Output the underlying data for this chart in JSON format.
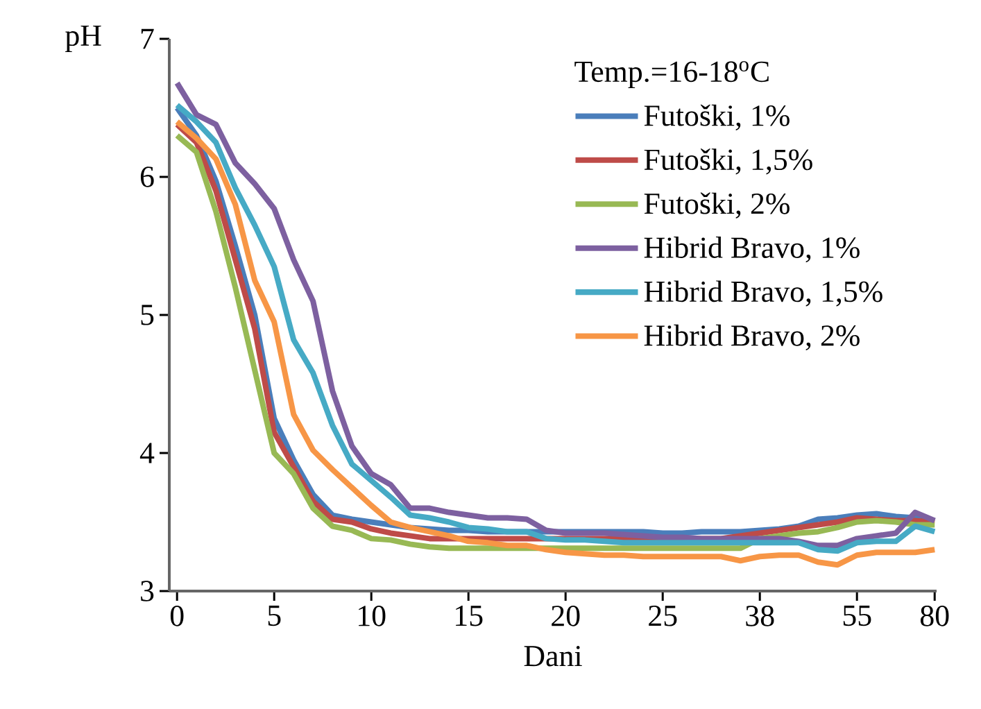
{
  "chart_data": {
    "type": "line",
    "xlabel": "Dani",
    "ylabel": "pH",
    "legend_title": "Temp.=16-18$^{o}$C",
    "categories": [
      "0",
      null,
      null,
      null,
      null,
      "5",
      null,
      null,
      null,
      null,
      "10",
      null,
      null,
      null,
      null,
      "15",
      null,
      null,
      null,
      null,
      "20",
      null,
      null,
      null,
      null,
      "25",
      null,
      null,
      null,
      null,
      "38",
      null,
      null,
      null,
      null,
      "55",
      null,
      null,
      null,
      "80"
    ],
    "ylim": [
      3,
      7
    ],
    "yticks": [
      3,
      4,
      5,
      6,
      7
    ],
    "grid": false,
    "legend": "top right",
    "marker": "none",
    "line_style": "solid",
    "series": [
      {
        "name": "Futoški, 1%",
        "color": "#4a7ebb",
        "values": [
          6.5,
          6.3,
          5.97,
          5.5,
          5.0,
          4.25,
          3.95,
          3.7,
          3.55,
          3.52,
          3.5,
          3.48,
          3.46,
          3.45,
          3.44,
          3.44,
          3.43,
          3.43,
          3.43,
          3.43,
          3.43,
          3.43,
          3.43,
          3.43,
          3.43,
          3.42,
          3.42,
          3.43,
          3.43,
          3.43,
          3.44,
          3.45,
          3.47,
          3.52,
          3.53,
          3.55,
          3.56,
          3.54,
          3.53,
          3.51
        ]
      },
      {
        "name": "Futoški, 1,5%",
        "color": "#be4b48",
        "values": [
          6.38,
          6.25,
          5.9,
          5.4,
          4.9,
          4.15,
          3.9,
          3.65,
          3.52,
          3.5,
          3.45,
          3.42,
          3.4,
          3.38,
          3.38,
          3.38,
          3.38,
          3.38,
          3.38,
          3.38,
          3.38,
          3.38,
          3.38,
          3.38,
          3.38,
          3.38,
          3.38,
          3.38,
          3.38,
          3.4,
          3.42,
          3.44,
          3.46,
          3.48,
          3.5,
          3.53,
          3.52,
          3.51,
          3.51,
          3.5
        ]
      },
      {
        "name": "Futoški, 2%",
        "color": "#98b954",
        "values": [
          6.3,
          6.18,
          5.75,
          5.2,
          4.6,
          4.0,
          3.85,
          3.6,
          3.47,
          3.44,
          3.38,
          3.37,
          3.34,
          3.32,
          3.31,
          3.31,
          3.31,
          3.31,
          3.31,
          3.31,
          3.31,
          3.31,
          3.31,
          3.31,
          3.31,
          3.31,
          3.31,
          3.31,
          3.31,
          3.31,
          3.38,
          3.4,
          3.42,
          3.43,
          3.46,
          3.5,
          3.51,
          3.5,
          3.48,
          3.48
        ]
      },
      {
        "name": "Hibrid Bravo, 1%",
        "color": "#7d60a0",
        "values": [
          6.68,
          6.45,
          6.38,
          6.1,
          5.95,
          5.77,
          5.4,
          5.1,
          4.45,
          4.05,
          3.85,
          3.77,
          3.6,
          3.6,
          3.57,
          3.55,
          3.53,
          3.53,
          3.52,
          3.44,
          3.42,
          3.42,
          3.42,
          3.41,
          3.4,
          3.39,
          3.39,
          3.38,
          3.38,
          3.38,
          3.38,
          3.38,
          3.36,
          3.33,
          3.33,
          3.38,
          3.4,
          3.42,
          3.57,
          3.51
        ]
      },
      {
        "name": "Hibrid Bravo, 1,5%",
        "color": "#46aac5",
        "values": [
          6.52,
          6.4,
          6.25,
          5.92,
          5.65,
          5.35,
          4.82,
          4.58,
          4.2,
          3.92,
          3.8,
          3.68,
          3.55,
          3.53,
          3.5,
          3.46,
          3.45,
          3.43,
          3.43,
          3.38,
          3.37,
          3.37,
          3.36,
          3.35,
          3.35,
          3.35,
          3.35,
          3.35,
          3.35,
          3.35,
          3.35,
          3.35,
          3.35,
          3.3,
          3.29,
          3.35,
          3.36,
          3.36,
          3.47,
          3.43
        ]
      },
      {
        "name": "Hibrid Bravo, 2%",
        "color": "#f79646",
        "values": [
          6.4,
          6.28,
          6.13,
          5.8,
          5.25,
          4.95,
          4.28,
          4.02,
          3.88,
          3.75,
          3.62,
          3.5,
          3.46,
          3.43,
          3.4,
          3.36,
          3.35,
          3.33,
          3.33,
          3.3,
          3.28,
          3.27,
          3.26,
          3.26,
          3.25,
          3.25,
          3.25,
          3.25,
          3.25,
          3.22,
          3.25,
          3.26,
          3.26,
          3.21,
          3.19,
          3.26,
          3.28,
          3.28,
          3.28,
          3.3
        ]
      }
    ]
  }
}
